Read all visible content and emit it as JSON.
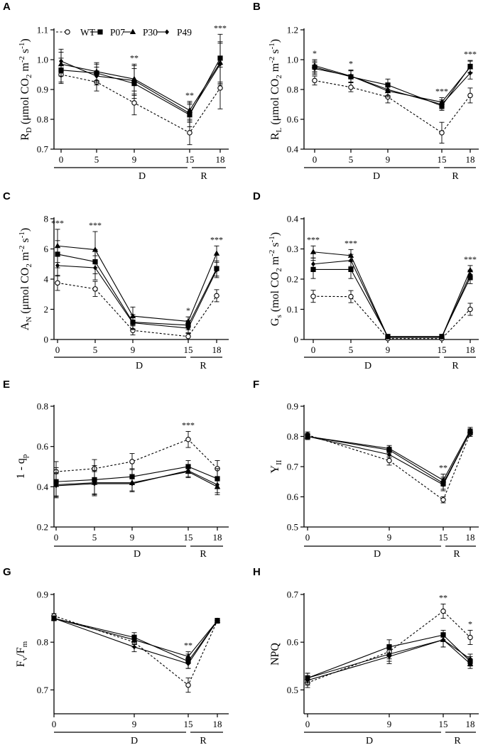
{
  "legend": [
    "WT",
    "P07",
    "P30",
    "P49"
  ],
  "series_styles": {
    "WT": "open-circle",
    "P07": "filled-square",
    "P30": "filled-triangle",
    "P49": "filled-diamond"
  },
  "segment_labels": {
    "drought": "D",
    "recovery": "R"
  },
  "chart_data": [
    {
      "panel": "A",
      "type": "line",
      "ylabel": {
        "main": "R",
        "sub": "D",
        "rest": " (μmol CO",
        "sub2": "2",
        "rest2": " m",
        "sup": "-2",
        "rest3": " s",
        "sup2": "-1",
        "end": ")"
      },
      "ytick_labels": [
        "0.7",
        "0.8",
        "0.9",
        "1.0",
        "1.1"
      ],
      "ylim": [
        0.7,
        1.1
      ],
      "x": [
        0,
        5,
        9,
        15,
        18
      ],
      "xtick_labels": [
        "0",
        "5",
        "9",
        "15",
        "18"
      ],
      "series": [
        {
          "name": "WT",
          "values": [
            0.95,
            0.925,
            0.855,
            0.755,
            0.905
          ],
          "err": [
            0.03,
            0.03,
            0.04,
            0.04,
            0.07
          ]
        },
        {
          "name": "P07",
          "values": [
            0.965,
            0.955,
            0.92,
            0.815,
            1.005
          ],
          "err": [
            0.04,
            0.03,
            0.05,
            0.04,
            0.08
          ]
        },
        {
          "name": "P30",
          "values": [
            0.985,
            0.96,
            0.935,
            0.83,
            0.99
          ],
          "err": [
            0.04,
            0.03,
            0.05,
            0.03,
            0.07
          ]
        },
        {
          "name": "P49",
          "values": [
            0.995,
            0.945,
            0.93,
            0.82,
            0.985
          ],
          "err": [
            0.04,
            0.03,
            0.05,
            0.03,
            0.07
          ]
        }
      ],
      "annotations": [
        {
          "x": 9,
          "text": "**"
        },
        {
          "x": 15,
          "text": "**"
        },
        {
          "x": 18,
          "text": "***"
        }
      ]
    },
    {
      "panel": "B",
      "type": "line",
      "ylabel": {
        "main": "R",
        "sub": "L",
        "rest": " (μmol CO",
        "sub2": "2",
        "rest2": " m",
        "sup": "-2",
        "rest3": " s",
        "sup2": "-1",
        "end": ")"
      },
      "ytick_labels": [
        "0.4",
        "0.6",
        "0.8",
        "1.0",
        "1.2"
      ],
      "ylim": [
        0.4,
        1.2
      ],
      "x": [
        0,
        5,
        9,
        15,
        18
      ],
      "xtick_labels": [
        "0",
        "5",
        "9",
        "15",
        "18"
      ],
      "series": [
        {
          "name": "WT",
          "values": [
            0.86,
            0.815,
            0.75,
            0.51,
            0.76
          ],
          "err": [
            0.03,
            0.03,
            0.04,
            0.07,
            0.05
          ]
        },
        {
          "name": "P07",
          "values": [
            0.95,
            0.885,
            0.83,
            0.69,
            0.955
          ],
          "err": [
            0.04,
            0.04,
            0.04,
            0.03,
            0.04
          ]
        },
        {
          "name": "P30",
          "values": [
            0.96,
            0.89,
            0.79,
            0.715,
            0.95
          ],
          "err": [
            0.04,
            0.04,
            0.04,
            0.03,
            0.04
          ]
        },
        {
          "name": "P49",
          "values": [
            0.94,
            0.89,
            0.8,
            0.7,
            0.91
          ],
          "err": [
            0.04,
            0.04,
            0.04,
            0.03,
            0.04
          ]
        }
      ],
      "annotations": [
        {
          "x": 0,
          "text": "*"
        },
        {
          "x": 5,
          "text": "*"
        },
        {
          "x": 15,
          "text": "***"
        },
        {
          "x": 18,
          "text": "***"
        }
      ]
    },
    {
      "panel": "C",
      "type": "line",
      "ylabel": {
        "main": "A",
        "sub": "N",
        "rest": " (μmol CO",
        "sub2": "2",
        "rest2": " m",
        "sup": "-2",
        "rest3": " s",
        "sup2": "-1",
        "end": ")"
      },
      "ytick_labels": [
        "0",
        "2",
        "4",
        "6",
        "8"
      ],
      "ylim": [
        0,
        8
      ],
      "x": [
        0,
        5,
        9,
        15,
        18
      ],
      "xtick_labels": [
        "0",
        "5",
        "9",
        "15",
        "18"
      ],
      "series": [
        {
          "name": "WT",
          "values": [
            3.75,
            3.35,
            0.6,
            0.2,
            2.9
          ],
          "err": [
            0.5,
            0.5,
            0.3,
            0.2,
            0.4
          ]
        },
        {
          "name": "P07",
          "values": [
            5.65,
            5.15,
            1.15,
            0.95,
            4.7
          ],
          "err": [
            0.9,
            0.8,
            0.5,
            0.3,
            0.5
          ]
        },
        {
          "name": "P30",
          "values": [
            6.2,
            5.95,
            1.55,
            1.2,
            5.7
          ],
          "err": [
            1.1,
            1.2,
            0.6,
            0.3,
            0.5
          ]
        },
        {
          "name": "P49",
          "values": [
            4.9,
            4.75,
            1.1,
            0.75,
            4.6
          ],
          "err": [
            0.7,
            0.8,
            0.4,
            0.3,
            0.5
          ]
        }
      ],
      "annotations": [
        {
          "x": 0,
          "text": "***"
        },
        {
          "x": 5,
          "text": "***"
        },
        {
          "x": 15,
          "text": "*"
        },
        {
          "x": 18,
          "text": "***"
        }
      ]
    },
    {
      "panel": "D",
      "type": "line",
      "ylabel": {
        "main": "G",
        "sub": "s",
        "rest": " (mol CO",
        "sub2": "2",
        "rest2": " m",
        "sup": "-2",
        "rest3": " s",
        "sup2": "-1",
        "end": ")"
      },
      "ytick_labels": [
        "0",
        "0.1",
        "0.2",
        "0.3",
        "0.4"
      ],
      "ylim": [
        0,
        0.4
      ],
      "x": [
        0,
        5,
        9,
        15,
        18
      ],
      "xtick_labels": [
        "0",
        "5",
        "9",
        "15",
        "18"
      ],
      "series": [
        {
          "name": "WT",
          "values": [
            0.143,
            0.142,
            0.003,
            0.003,
            0.1
          ],
          "err": [
            0.02,
            0.02,
            0.003,
            0.003,
            0.02
          ]
        },
        {
          "name": "P07",
          "values": [
            0.232,
            0.232,
            0.01,
            0.01,
            0.205
          ],
          "err": [
            0.03,
            0.03,
            0.005,
            0.005,
            0.02
          ]
        },
        {
          "name": "P30",
          "values": [
            0.29,
            0.278,
            0.008,
            0.008,
            0.23
          ],
          "err": [
            0.02,
            0.02,
            0.005,
            0.005,
            0.015
          ]
        },
        {
          "name": "P49",
          "values": [
            0.25,
            0.262,
            0.007,
            0.007,
            0.215
          ],
          "err": [
            0.02,
            0.02,
            0.005,
            0.005,
            0.015
          ]
        }
      ],
      "annotations": [
        {
          "x": 0,
          "text": "***"
        },
        {
          "x": 5,
          "text": "***"
        },
        {
          "x": 18,
          "text": "***"
        }
      ]
    },
    {
      "panel": "E",
      "type": "line",
      "ylabel": {
        "main": "1 - q",
        "sub": "p"
      },
      "ytick_labels": [
        "0.2",
        "0.4",
        "0.6",
        "0.8"
      ],
      "ylim": [
        0.2,
        0.8
      ],
      "x": [
        0,
        5,
        9,
        15,
        18
      ],
      "xtick_labels": [
        "0",
        "5",
        "9",
        "15",
        "18"
      ],
      "series": [
        {
          "name": "WT",
          "values": [
            0.475,
            0.49,
            0.525,
            0.635,
            0.49
          ],
          "err": [
            0.05,
            0.045,
            0.04,
            0.04,
            0.04
          ]
        },
        {
          "name": "P07",
          "values": [
            0.425,
            0.435,
            0.45,
            0.5,
            0.44
          ],
          "err": [
            0.07,
            0.07,
            0.04,
            0.03,
            0.05
          ]
        },
        {
          "name": "P30",
          "values": [
            0.41,
            0.42,
            0.42,
            0.475,
            0.4
          ],
          "err": [
            0.06,
            0.06,
            0.04,
            0.03,
            0.04
          ]
        },
        {
          "name": "P49",
          "values": [
            0.405,
            0.415,
            0.415,
            0.48,
            0.41
          ],
          "err": [
            0.06,
            0.06,
            0.04,
            0.03,
            0.04
          ]
        }
      ],
      "annotations": [
        {
          "x": 15,
          "text": "***"
        }
      ]
    },
    {
      "panel": "F",
      "type": "line",
      "ylabel": {
        "main": "Y",
        "sub": "II"
      },
      "ytick_labels": [
        "0.5",
        "0.6",
        "0.7",
        "0.8",
        "0.9"
      ],
      "ylim": [
        0.5,
        0.9
      ],
      "x": [
        0,
        9,
        15,
        18
      ],
      "xtick_labels": [
        "0",
        "9",
        "15",
        "18"
      ],
      "series": [
        {
          "name": "WT",
          "values": [
            0.805,
            0.72,
            0.59,
            0.81
          ],
          "err": [
            0.01,
            0.015,
            0.01,
            0.01
          ]
        },
        {
          "name": "P07",
          "values": [
            0.8,
            0.755,
            0.645,
            0.815
          ],
          "err": [
            0.01,
            0.01,
            0.02,
            0.01
          ]
        },
        {
          "name": "P30",
          "values": [
            0.8,
            0.76,
            0.655,
            0.82
          ],
          "err": [
            0.01,
            0.01,
            0.02,
            0.01
          ]
        },
        {
          "name": "P49",
          "values": [
            0.8,
            0.74,
            0.64,
            0.815
          ],
          "err": [
            0.01,
            0.01,
            0.02,
            0.01
          ]
        }
      ],
      "annotations": [
        {
          "x": 15,
          "text": "**"
        }
      ]
    },
    {
      "panel": "G",
      "type": "line",
      "ylabel": {
        "main": "F",
        "sub": "v",
        "rest": "/F",
        "sub2": "m"
      },
      "ytick_labels": [
        "0.7",
        "0.8",
        "0.9"
      ],
      "ylim": [
        0.65,
        0.9
      ],
      "x": [
        0,
        9,
        15,
        18
      ],
      "xtick_labels": [
        "0",
        "9",
        "15",
        "18"
      ],
      "series": [
        {
          "name": "WT",
          "values": [
            0.855,
            0.8,
            0.71,
            0.845
          ],
          "err": [
            0.005,
            0.01,
            0.015,
            0.005
          ]
        },
        {
          "name": "P07",
          "values": [
            0.85,
            0.81,
            0.76,
            0.845
          ],
          "err": [
            0.005,
            0.01,
            0.015,
            0.005
          ]
        },
        {
          "name": "P30",
          "values": [
            0.85,
            0.805,
            0.77,
            0.845
          ],
          "err": [
            0.005,
            0.01,
            0.01,
            0.005
          ]
        },
        {
          "name": "P49",
          "values": [
            0.85,
            0.79,
            0.755,
            0.845
          ],
          "err": [
            0.005,
            0.01,
            0.01,
            0.005
          ]
        }
      ],
      "annotations": [
        {
          "x": 15,
          "text": "**"
        }
      ]
    },
    {
      "panel": "H",
      "type": "line",
      "ylabel": {
        "main": "NPQ"
      },
      "ytick_labels": [
        "0.5",
        "0.6",
        "0.7"
      ],
      "ylim": [
        0.45,
        0.7
      ],
      "x": [
        0,
        9,
        15,
        18
      ],
      "xtick_labels": [
        "0",
        "9",
        "15",
        "18"
      ],
      "series": [
        {
          "name": "WT",
          "values": [
            0.515,
            0.58,
            0.665,
            0.61
          ],
          "err": [
            0.01,
            0.015,
            0.015,
            0.015
          ]
        },
        {
          "name": "P07",
          "values": [
            0.525,
            0.59,
            0.615,
            0.56
          ],
          "err": [
            0.01,
            0.015,
            0.01,
            0.01
          ]
        },
        {
          "name": "P30",
          "values": [
            0.525,
            0.575,
            0.605,
            0.555
          ],
          "err": [
            0.01,
            0.015,
            0.015,
            0.01
          ]
        },
        {
          "name": "P49",
          "values": [
            0.52,
            0.57,
            0.605,
            0.565
          ],
          "err": [
            0.01,
            0.015,
            0.015,
            0.01
          ]
        }
      ],
      "annotations": [
        {
          "x": 15,
          "text": "**"
        },
        {
          "x": 18,
          "text": "*"
        }
      ]
    }
  ]
}
